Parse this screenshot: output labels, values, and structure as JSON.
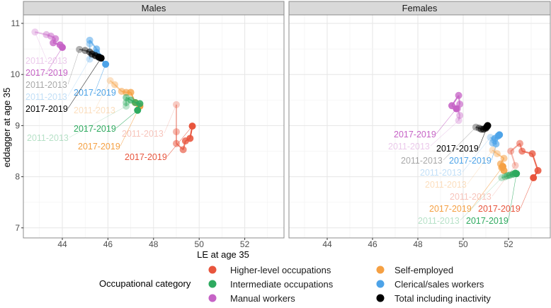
{
  "chart_data": {
    "type": "line",
    "title": "",
    "xlabel": "LE at age 35",
    "ylabel": "eddagger at  age 35",
    "xlim": [
      42.3,
      53.8
    ],
    "ylim": [
      6.78,
      11.17
    ],
    "x_ticks": [
      44,
      46,
      48,
      50,
      52
    ],
    "y_ticks": [
      7,
      8,
      9,
      10,
      11
    ],
    "grid": true,
    "period_first": "2011-2013",
    "period_last": "2017-2019",
    "legend": {
      "title": "Occupational category",
      "placement": "bottom",
      "items": [
        {
          "key": "higher",
          "label": "Higher-level occupations"
        },
        {
          "key": "intermediate",
          "label": "Intermediate occupations"
        },
        {
          "key": "manual",
          "label": "Manual workers"
        },
        {
          "key": "self",
          "label": "Self-employed"
        },
        {
          "key": "clerical",
          "label": "Clerical/sales workers"
        },
        {
          "key": "total",
          "label": "Total including inactivity"
        }
      ]
    },
    "colors": {
      "higher": "#E8553D",
      "intermediate": "#2EAA5F",
      "manual": "#C663C6",
      "self": "#F5A043",
      "clerical": "#4DA3E8",
      "total": "#000000"
    },
    "panels": [
      {
        "name": "Males",
        "series": [
          {
            "key": "manual",
            "points": [
              [
                42.8,
                10.83
              ],
              [
                43.3,
                10.78
              ],
              [
                43.5,
                10.75
              ],
              [
                43.7,
                10.7
              ],
              [
                43.6,
                10.62
              ],
              [
                43.9,
                10.58
              ],
              [
                44.0,
                10.53
              ]
            ]
          },
          {
            "key": "clerical",
            "points": [
              [
                45.2,
                10.3
              ],
              [
                45.2,
                10.6
              ],
              [
                45.2,
                10.67
              ],
              [
                45.5,
                10.5
              ],
              [
                45.5,
                10.43
              ],
              [
                45.6,
                10.35
              ],
              [
                45.9,
                10.2
              ]
            ]
          },
          {
            "key": "total",
            "points": [
              [
                44.75,
                10.49
              ],
              [
                45.0,
                10.47
              ],
              [
                45.2,
                10.44
              ],
              [
                45.3,
                10.4
              ],
              [
                45.45,
                10.37
              ],
              [
                45.6,
                10.34
              ],
              [
                45.7,
                10.32
              ]
            ]
          },
          {
            "key": "self",
            "points": [
              [
                46.1,
                9.88
              ],
              [
                46.3,
                9.8
              ],
              [
                46.6,
                9.67
              ],
              [
                46.8,
                9.65
              ],
              [
                47.0,
                9.65
              ],
              [
                47.2,
                9.45
              ],
              [
                47.4,
                9.38
              ]
            ]
          },
          {
            "key": "intermediate",
            "points": [
              [
                46.8,
                9.38
              ],
              [
                46.8,
                9.45
              ],
              [
                46.8,
                9.55
              ],
              [
                47.0,
                9.5
              ],
              [
                47.2,
                9.45
              ],
              [
                47.4,
                9.43
              ],
              [
                47.3,
                9.3
              ]
            ]
          },
          {
            "key": "higher",
            "points": [
              [
                49.0,
                9.41
              ],
              [
                49.0,
                8.88
              ],
              [
                49.0,
                8.65
              ],
              [
                49.3,
                8.53
              ],
              [
                49.4,
                8.7
              ],
              [
                49.6,
                8.75
              ],
              [
                49.7,
                8.99
              ]
            ]
          }
        ]
      },
      {
        "name": "Females",
        "series": [
          {
            "key": "manual",
            "points": [
              [
                49.8,
                9.1
              ],
              [
                49.85,
                9.2
              ],
              [
                49.75,
                9.33
              ],
              [
                49.85,
                9.42
              ],
              [
                49.8,
                9.59
              ],
              [
                49.5,
                9.39
              ],
              [
                49.7,
                9.33
              ]
            ]
          },
          {
            "key": "total",
            "points": [
              [
                50.56,
                8.97
              ],
              [
                50.7,
                8.95
              ],
              [
                50.8,
                8.93
              ],
              [
                50.9,
                8.93
              ],
              [
                51.0,
                8.95
              ],
              [
                51.05,
                8.98
              ],
              [
                51.08,
                9.0
              ]
            ]
          },
          {
            "key": "clerical",
            "points": [
              [
                51.2,
                8.77
              ],
              [
                51.35,
                8.72
              ],
              [
                51.3,
                8.66
              ],
              [
                51.45,
                8.64
              ],
              [
                51.4,
                8.75
              ],
              [
                51.55,
                8.8
              ],
              [
                51.6,
                8.82
              ]
            ]
          },
          {
            "key": "self",
            "points": [
              [
                51.3,
                8.52
              ],
              [
                51.5,
                8.45
              ],
              [
                51.8,
                8.36
              ],
              [
                51.65,
                8.25
              ],
              [
                51.7,
                8.18
              ],
              [
                51.8,
                8.12
              ],
              [
                51.75,
                8.2
              ]
            ]
          },
          {
            "key": "intermediate",
            "points": [
              [
                51.7,
                7.98
              ],
              [
                51.85,
                8.0
              ],
              [
                51.95,
                8.02
              ],
              [
                52.05,
                8.03
              ],
              [
                52.2,
                8.05
              ],
              [
                52.3,
                8.07
              ],
              [
                52.35,
                8.06
              ]
            ]
          },
          {
            "key": "higher",
            "points": [
              [
                52.3,
                8.22
              ],
              [
                52.1,
                8.5
              ],
              [
                52.5,
                8.65
              ],
              [
                52.6,
                8.5
              ],
              [
                53.05,
                8.45
              ],
              [
                53.3,
                8.12
              ],
              [
                53.1,
                7.98
              ]
            ]
          }
        ]
      }
    ]
  }
}
